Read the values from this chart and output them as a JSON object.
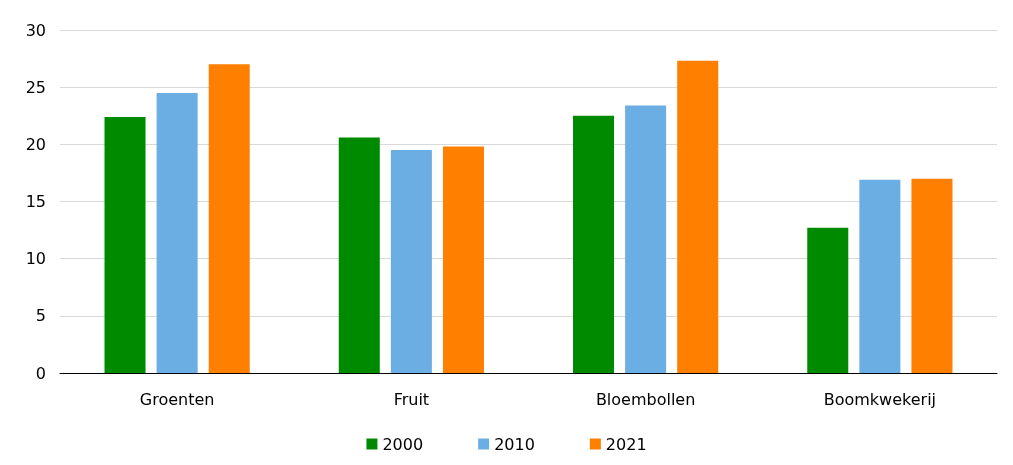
{
  "chart_data": {
    "type": "bar",
    "categories": [
      "Groenten",
      "Fruit",
      "Bloembollen",
      "Boomkwekerij"
    ],
    "series": [
      {
        "name": "2000",
        "color": "#008a00",
        "values": [
          22.4,
          20.6,
          22.5,
          12.7
        ]
      },
      {
        "name": "2010",
        "color": "#6aaee4",
        "values": [
          24.5,
          19.5,
          23.4,
          16.9
        ]
      },
      {
        "name": "2021",
        "color": "#ff7f00",
        "values": [
          27.0,
          19.8,
          27.3,
          17.0
        ]
      }
    ],
    "ylim": [
      0,
      30
    ],
    "yticks": [
      0,
      5,
      10,
      15,
      20,
      25,
      30
    ],
    "grid": "y",
    "legend": "bottom"
  }
}
